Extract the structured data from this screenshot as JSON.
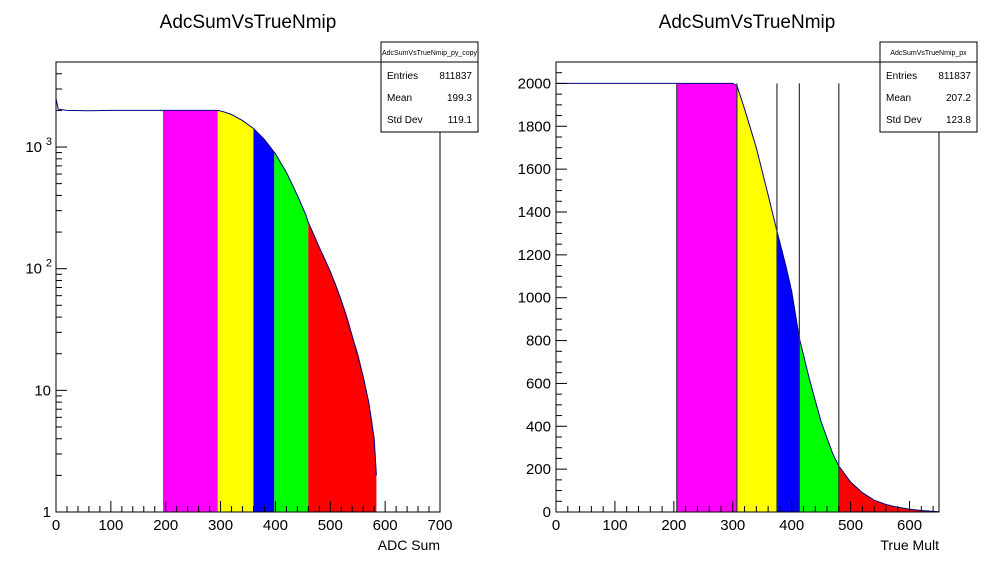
{
  "chart_data": [
    {
      "type": "histogram",
      "title": "AdcSumVsTrueNmip",
      "xlabel": "ADC Sum",
      "ylabel": "",
      "xlim": [
        0,
        700
      ],
      "ylim": [
        1,
        5000
      ],
      "log_y": true,
      "grid": false,
      "legend": "none",
      "x_ticks": [
        0,
        100,
        200,
        300,
        400,
        500,
        600,
        700
      ],
      "y_ticks": [
        {
          "value": 1,
          "label": "1"
        },
        {
          "value": 10,
          "label": "10"
        },
        {
          "value": 100,
          "label": "10",
          "exponent": "2"
        },
        {
          "value": 1000,
          "label": "10",
          "exponent": "3"
        }
      ],
      "stats": {
        "name": "AdcSumVsTrueNmip_py_copy",
        "rows": [
          {
            "label": "Entries",
            "value": "811837"
          },
          {
            "label": "Mean",
            "value": "199.3"
          },
          {
            "label": "Std Dev",
            "value": "119.1"
          }
        ]
      },
      "outline": [
        [
          0,
          2500
        ],
        [
          4,
          2050
        ],
        [
          20,
          2000
        ],
        [
          60,
          1990
        ],
        [
          100,
          2000
        ],
        [
          150,
          2000
        ],
        [
          195,
          2000
        ],
        [
          230,
          2000
        ],
        [
          260,
          2000
        ],
        [
          280,
          2000
        ],
        [
          295,
          2000
        ],
        [
          305,
          1950
        ],
        [
          320,
          1850
        ],
        [
          340,
          1650
        ],
        [
          360,
          1420
        ],
        [
          380,
          1150
        ],
        [
          400,
          880
        ],
        [
          420,
          620
        ],
        [
          440,
          400
        ],
        [
          455,
          280
        ],
        [
          460,
          240
        ],
        [
          480,
          150
        ],
        [
          500,
          95
        ],
        [
          520,
          55
        ],
        [
          540,
          28
        ],
        [
          560,
          13
        ],
        [
          570,
          8
        ],
        [
          580,
          4
        ],
        [
          584,
          2
        ]
      ],
      "regions": [
        {
          "x0": 195,
          "x1": 295,
          "color": "#ff00ff"
        },
        {
          "x0": 295,
          "x1": 360,
          "color": "#ffff00"
        },
        {
          "x0": 360,
          "x1": 398,
          "color": "#0000ff"
        },
        {
          "x0": 398,
          "x1": 460,
          "color": "#00ff00"
        },
        {
          "x0": 460,
          "x1": 584,
          "color": "#ff0000"
        }
      ]
    },
    {
      "type": "histogram",
      "title": "AdcSumVsTrueNmip",
      "xlabel": "True Mult",
      "ylabel": "",
      "xlim": [
        0,
        650
      ],
      "ylim": [
        0,
        2100
      ],
      "log_y": false,
      "grid": false,
      "legend": "none",
      "x_ticks": [
        0,
        100,
        200,
        300,
        400,
        500,
        600
      ],
      "y_ticks": [
        {
          "value": 0,
          "label": "0"
        },
        {
          "value": 200,
          "label": "200"
        },
        {
          "value": 400,
          "label": "400"
        },
        {
          "value": 600,
          "label": "600"
        },
        {
          "value": 800,
          "label": "800"
        },
        {
          "value": 1000,
          "label": "1000"
        },
        {
          "value": 1200,
          "label": "1200"
        },
        {
          "value": 1400,
          "label": "1400"
        },
        {
          "value": 1600,
          "label": "1600"
        },
        {
          "value": 1800,
          "label": "1800"
        },
        {
          "value": 2000,
          "label": "2000"
        }
      ],
      "stats": {
        "name": "AdcSumVsTrueNmip_px",
        "rows": [
          {
            "label": "Entries",
            "value": "811837"
          },
          {
            "label": "Mean",
            "value": "207.2"
          },
          {
            "label": "Std Dev",
            "value": "123.8"
          }
        ]
      },
      "outline": [
        [
          0,
          2000
        ],
        [
          100,
          2000
        ],
        [
          200,
          2000
        ],
        [
          250,
          2000
        ],
        [
          300,
          2000
        ],
        [
          307,
          1990
        ],
        [
          320,
          1880
        ],
        [
          340,
          1700
        ],
        [
          360,
          1480
        ],
        [
          375,
          1310
        ],
        [
          390,
          1150
        ],
        [
          400,
          1030
        ],
        [
          413,
          810
        ],
        [
          430,
          620
        ],
        [
          450,
          420
        ],
        [
          470,
          270
        ],
        [
          480,
          215
        ],
        [
          500,
          140
        ],
        [
          520,
          90
        ],
        [
          540,
          55
        ],
        [
          560,
          35
        ],
        [
          580,
          22
        ],
        [
          600,
          13
        ],
        [
          620,
          7
        ],
        [
          640,
          3
        ],
        [
          650,
          1
        ]
      ],
      "regions": [
        {
          "x0": 205,
          "x1": 307,
          "color": "#ff00ff"
        },
        {
          "x0": 307,
          "x1": 375,
          "color": "#ffff00"
        },
        {
          "x0": 375,
          "x1": 413,
          "color": "#0000ff"
        },
        {
          "x0": 413,
          "x1": 480,
          "color": "#00ff00"
        },
        {
          "x0": 480,
          "x1": 650,
          "color": "#ff0000"
        }
      ],
      "vertical_lines": [
        205,
        307,
        375,
        413,
        480
      ]
    }
  ]
}
